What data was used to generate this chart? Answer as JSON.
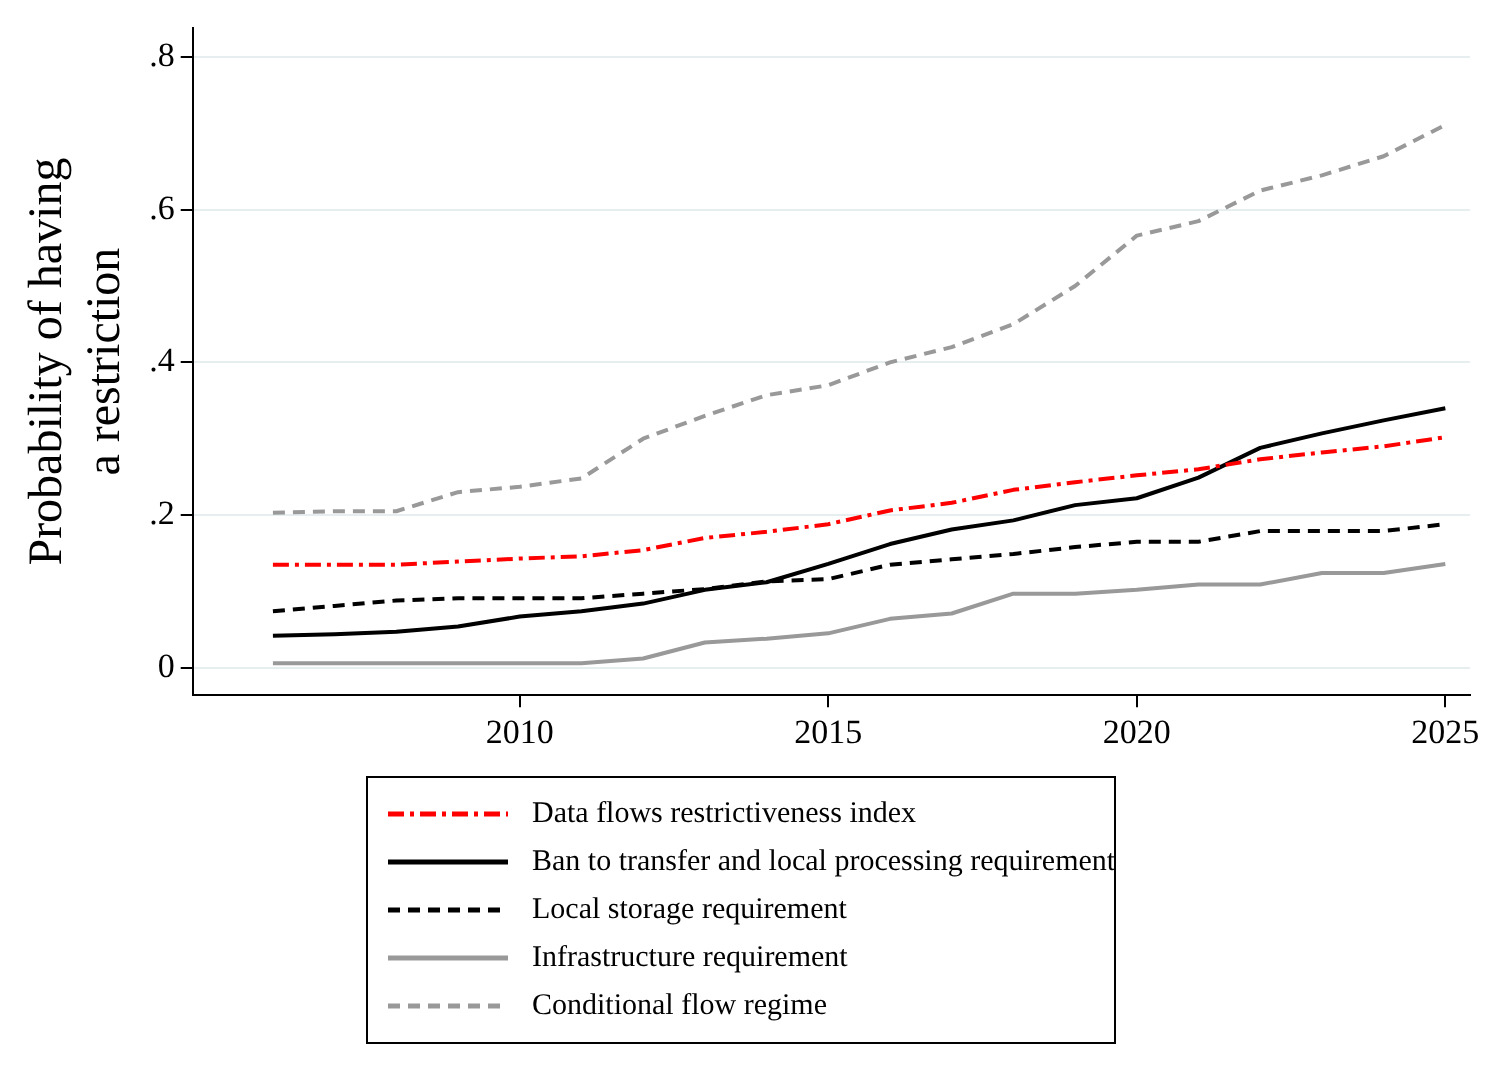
{
  "chart_data": {
    "type": "line",
    "ylabel": "Probability of having a restriction",
    "x": [
      2006,
      2007,
      2008,
      2009,
      2010,
      2011,
      2012,
      2013,
      2014,
      2015,
      2016,
      2017,
      2018,
      2019,
      2020,
      2021,
      2022,
      2023,
      2024,
      2025
    ],
    "series": [
      {
        "name": "Data flows restrictiveness index",
        "color": "#ff0000",
        "line_style": "dashdot",
        "values": [
          0.135,
          0.135,
          0.135,
          0.139,
          0.143,
          0.146,
          0.154,
          0.17,
          0.178,
          0.188,
          0.206,
          0.216,
          0.233,
          0.243,
          0.252,
          0.26,
          0.273,
          0.282,
          0.29,
          0.302
        ]
      },
      {
        "name": "Ban to transfer and local processing requirement",
        "color": "#000000",
        "line_style": "solid",
        "values": [
          0.042,
          0.044,
          0.047,
          0.054,
          0.067,
          0.074,
          0.084,
          0.102,
          0.112,
          0.136,
          0.162,
          0.181,
          0.193,
          0.213,
          0.222,
          0.249,
          0.288,
          0.307,
          0.324,
          0.34
        ]
      },
      {
        "name": "Local storage requirement",
        "color": "#000000",
        "line_style": "dashed",
        "values": [
          0.074,
          0.081,
          0.088,
          0.091,
          0.091,
          0.091,
          0.097,
          0.103,
          0.113,
          0.116,
          0.135,
          0.142,
          0.149,
          0.158,
          0.165,
          0.165,
          0.179,
          0.179,
          0.179,
          0.188
        ]
      },
      {
        "name": "Infrastructure requirement",
        "color": "#999999",
        "line_style": "solid",
        "values": [
          0.006,
          0.006,
          0.006,
          0.006,
          0.006,
          0.006,
          0.012,
          0.033,
          0.038,
          0.045,
          0.064,
          0.071,
          0.097,
          0.097,
          0.102,
          0.109,
          0.109,
          0.124,
          0.124,
          0.136
        ]
      },
      {
        "name": "Conditional flow regime",
        "color": "#999999",
        "line_style": "dashed",
        "values": [
          0.203,
          0.205,
          0.205,
          0.23,
          0.237,
          0.248,
          0.3,
          0.33,
          0.357,
          0.37,
          0.4,
          0.42,
          0.45,
          0.5,
          0.566,
          0.585,
          0.625,
          0.645,
          0.67,
          0.711
        ]
      }
    ],
    "xlim": [
      2004.7,
      2025.4
    ],
    "xticks": [
      2010,
      2015,
      2020,
      2025
    ],
    "ylim": [
      -0.036,
      0.838
    ],
    "yticks": [
      {
        "value": 0,
        "label": "0"
      },
      {
        "value": 0.2,
        "label": ".2"
      },
      {
        "value": 0.4,
        "label": ".4"
      },
      {
        "value": 0.6,
        "label": ".6"
      },
      {
        "value": 0.8,
        "label": ".8"
      }
    ],
    "grid": "y",
    "legend": "bottom",
    "marker": "none"
  }
}
